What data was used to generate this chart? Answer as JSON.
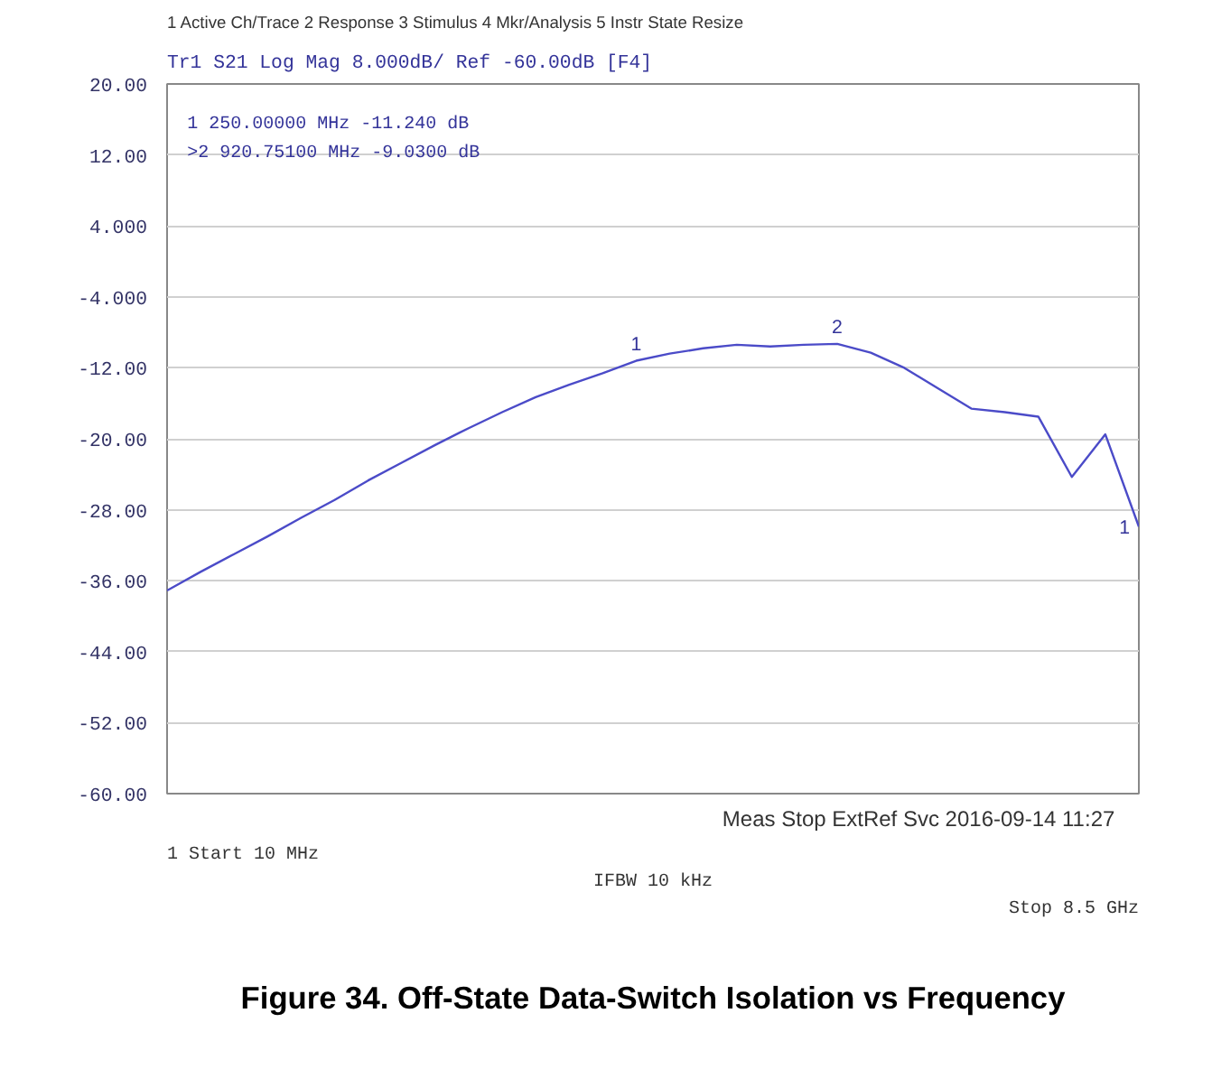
{
  "chart_data": {
    "type": "line",
    "title": "Figure 34. Off-State Data-Switch Isolation vs Frequency",
    "subtitle": "Tr1 S21 Log Mag 8.000dB/ Ref -60.00dB [F4]",
    "categories": [
      null,
      null,
      null,
      null,
      null,
      null,
      null,
      null,
      null,
      null,
      null,
      null,
      null,
      null,
      null,
      null,
      null,
      null,
      null,
      null,
      null,
      null,
      null,
      null,
      null,
      null,
      null,
      null,
      null,
      null
    ],
    "series": [
      {
        "color": "#4b4bc8",
        "values": [
          -37.1,
          -35.0,
          -33.0,
          -31.0,
          -28.9,
          -26.9,
          -24.7,
          -22.7,
          -20.7,
          -18.8,
          -17.0,
          -15.3,
          -13.9,
          -12.6,
          -11.2,
          -10.4,
          -9.8,
          -9.4,
          -9.6,
          -9.4,
          -9.3,
          -10.3,
          -12.0,
          -14.3,
          -16.6,
          -17.0,
          -17.5,
          -24.3,
          -19.5,
          -29.9
        ]
      }
    ],
    "ylim": [
      -60,
      20
    ],
    "yticks": [
      {
        "value": -60,
        "label": "-60.00"
      },
      {
        "value": -52,
        "label": "-52.00"
      },
      {
        "value": -44,
        "label": "-44.00"
      },
      {
        "value": -36,
        "label": "-36.00"
      },
      {
        "value": -28,
        "label": "-28.00"
      },
      {
        "value": -20,
        "label": "-20.00"
      },
      {
        "value": -12,
        "label": "-12.00"
      },
      {
        "value": -4,
        "label": "-4.000"
      },
      {
        "value": 4,
        "label": "4.000"
      },
      {
        "value": 12,
        "label": "12.00"
      },
      {
        "value": 20,
        "label": "20.00"
      }
    ],
    "grid": "y",
    "marker": "none",
    "line_style": "solid",
    "annotations": [
      "1 Active Ch/Trace   2 Response   3 Stimulus   4 Mkr/Analysis   5 Instr State   Resize",
      "1  250.00000 MHz -11.240 dB",
      ">2  920.75100 MHz -9.0300 dB",
      "1  Start 10 MHz",
      "IFBW 10 kHz",
      "Stop 8.5 GHz",
      "Meas  Stop  ExtRef  Svc  2016-09-14 11:27",
      {
        "text": "1",
        "y": -11.2
      },
      {
        "text": "2",
        "y": -9.3
      },
      "1"
    ]
  }
}
